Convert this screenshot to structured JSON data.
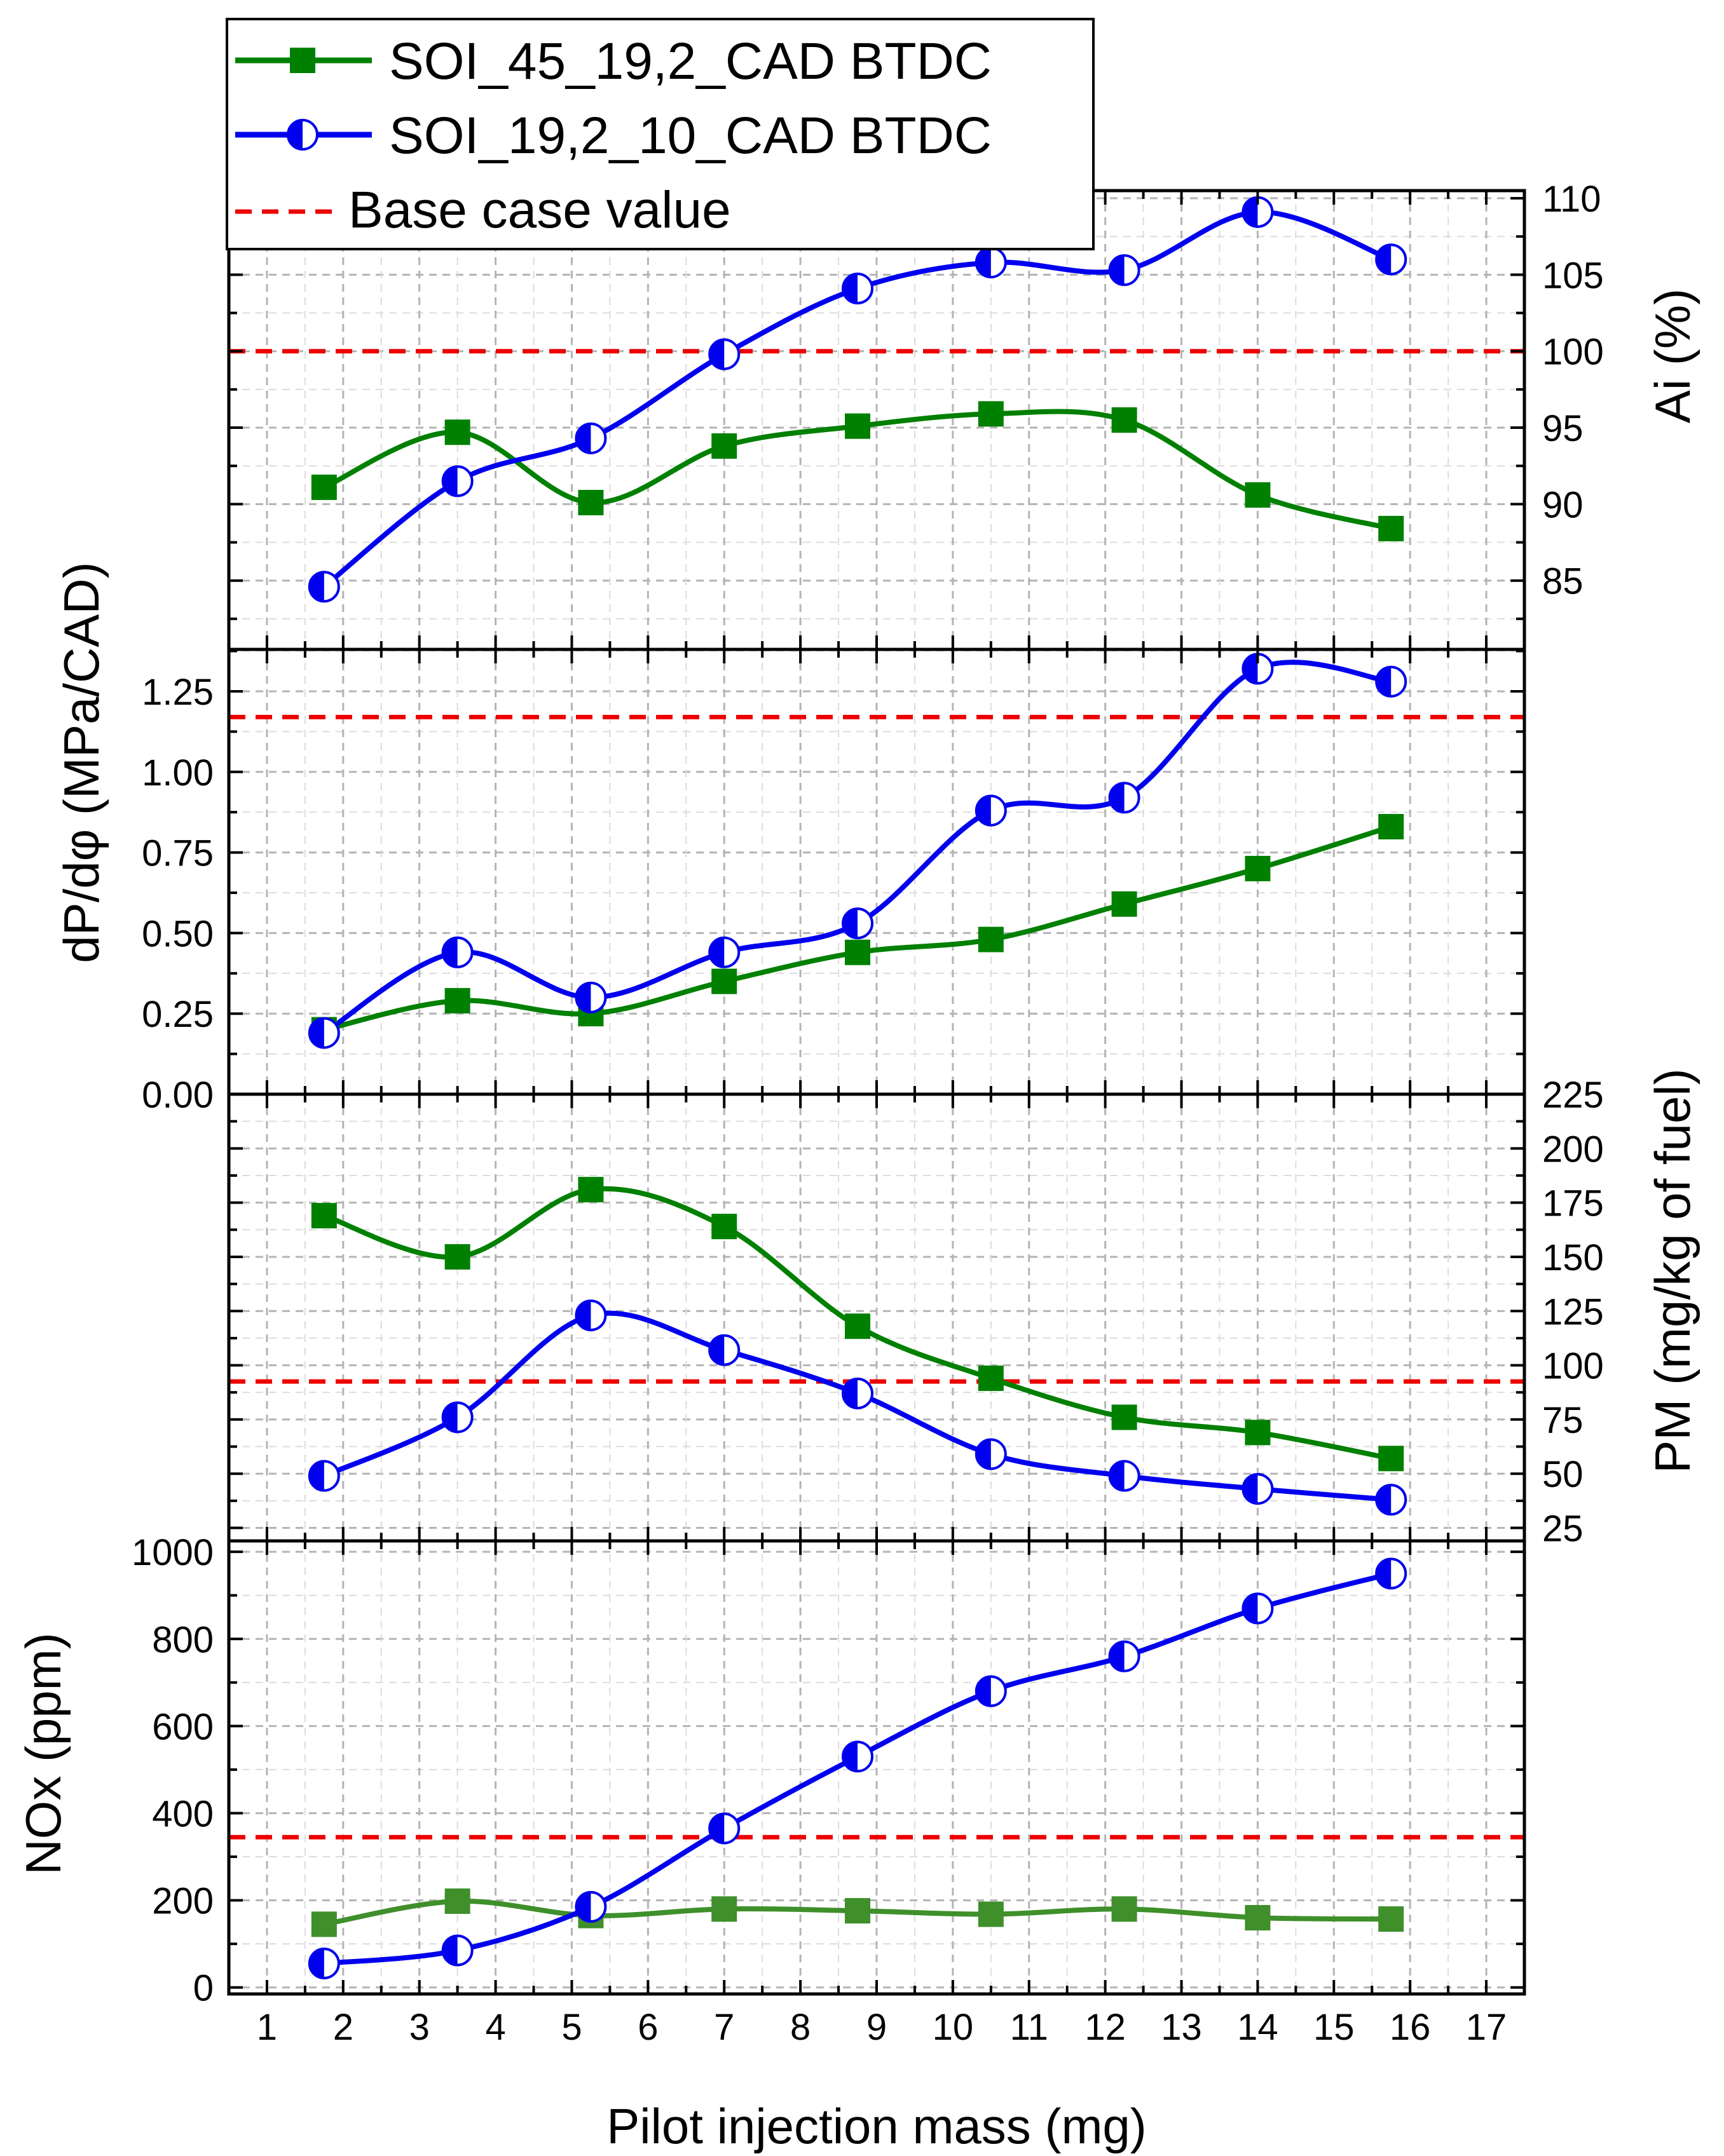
{
  "chart_data": {
    "type": "line",
    "figure_type": "stacked multi-panel line chart",
    "x": {
      "label": "Pilot injection mass (mg)",
      "range": [
        0.5,
        17.5
      ],
      "ticks": [
        "1",
        "2",
        "3",
        "4",
        "5",
        "6",
        "7",
        "8",
        "9",
        "10",
        "11",
        "12",
        "13",
        "14",
        "15",
        "16",
        "17"
      ],
      "values": [
        1.75,
        3.5,
        5.25,
        7.0,
        8.75,
        10.5,
        12.25,
        14.0,
        15.75
      ]
    },
    "legend": {
      "position": "top-left",
      "entries": [
        {
          "label": "SOI_45_19,2_CAD BTDC",
          "marker": "square",
          "color": "#008000"
        },
        {
          "label": "SOI_19,2_10_CAD BTDC",
          "marker": "half-filled circle",
          "color": "#0000ee"
        },
        {
          "label": "Base case value",
          "style": "dashed",
          "color": "#ee0000"
        }
      ]
    },
    "colors": {
      "series1": "#008000",
      "series2": "#0000ee",
      "base": "#ee0000",
      "nox_series1": "#3f8f2b"
    },
    "panels": [
      {
        "id": "ai",
        "ylabel": "Ai (%)",
        "axis_side": "right",
        "ylim": [
          80.5,
          110.5
        ],
        "ticks": [
          "85",
          "90",
          "95",
          "100",
          "105",
          "110"
        ],
        "base_value": 100,
        "series": [
          {
            "name": "SOI_45_19,2_CAD BTDC",
            "values": [
              91.1,
              94.7,
              90.1,
              93.8,
              95.1,
              95.9,
              95.5,
              90.6,
              88.4
            ]
          },
          {
            "name": "SOI_19,2_10_CAD BTDC",
            "values": [
              84.6,
              91.5,
              94.3,
              99.8,
              104.1,
              105.8,
              105.3,
              109.1,
              106.0
            ]
          }
        ]
      },
      {
        "id": "dpdphi",
        "ylabel": "dP/dφ (MPa/CAD)",
        "axis_side": "left",
        "ylim": [
          0,
          1.38
        ],
        "ticks": [
          "0.00",
          "0.25",
          "0.50",
          "0.75",
          "1.00",
          "1.25"
        ],
        "base_value": 1.17,
        "series": [
          {
            "name": "SOI_45_19,2_CAD BTDC",
            "values": [
              0.2,
              0.29,
              0.25,
              0.35,
              0.44,
              0.48,
              0.59,
              0.7,
              0.83
            ]
          },
          {
            "name": "SOI_19,2_10_CAD BTDC",
            "values": [
              0.19,
              0.44,
              0.3,
              0.44,
              0.53,
              0.88,
              0.92,
              1.32,
              1.28
            ]
          }
        ]
      },
      {
        "id": "pm",
        "ylabel": "PM (mg/kg of fuel)",
        "axis_side": "right",
        "ylim": [
          19,
          225
        ],
        "ticks": [
          "25",
          "50",
          "75",
          "100",
          "125",
          "150",
          "175",
          "200",
          "225"
        ],
        "base_value": 92.5,
        "series": [
          {
            "name": "SOI_45_19,2_CAD BTDC",
            "values": [
              169,
              150,
              181,
              164,
              118,
              94,
              76,
              69,
              57
            ]
          },
          {
            "name": "SOI_19,2_10_CAD BTDC",
            "values": [
              49,
              76,
              123,
              107,
              87,
              59,
              49,
              43,
              38
            ]
          }
        ]
      },
      {
        "id": "nox",
        "ylabel": "NOx (ppm)",
        "axis_side": "left",
        "ylim": [
          -15,
          1025
        ],
        "ticks": [
          "0",
          "200",
          "400",
          "600",
          "800",
          "1000"
        ],
        "base_value": 345,
        "series": [
          {
            "name": "SOI_45_19,2_CAD BTDC",
            "values": [
              145,
              198,
              165,
              180,
              176,
              168,
              180,
              160,
              157
            ]
          },
          {
            "name": "SOI_19,2_10_CAD BTDC",
            "values": [
              55,
              85,
              185,
              365,
              530,
              680,
              760,
              870,
              950
            ]
          }
        ]
      }
    ]
  }
}
